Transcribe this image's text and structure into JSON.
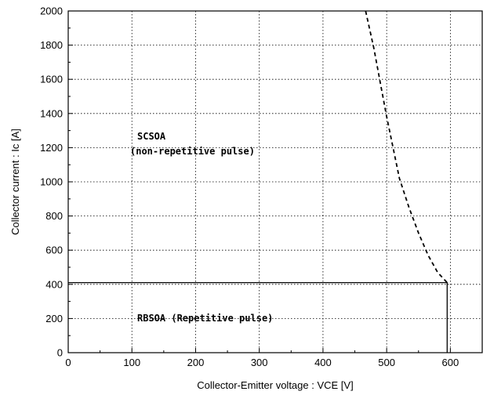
{
  "chart_data": {
    "type": "line",
    "title": "",
    "xlabel": "Collector-Emitter  voltage  :  VCE [V]",
    "ylabel": "Collector  current  :  Ic [A]",
    "xlim": [
      0,
      650
    ],
    "ylim": [
      0,
      2000
    ],
    "grid": true,
    "x_ticks": [
      0,
      100,
      200,
      300,
      400,
      500,
      600
    ],
    "y_ticks": [
      0,
      200,
      400,
      600,
      800,
      1000,
      1200,
      1400,
      1600,
      1800,
      2000
    ],
    "series": [
      {
        "style": "solid",
        "points": [
          [
            0,
            410
          ],
          [
            595,
            410
          ],
          [
            595,
            0
          ]
        ]
      },
      {
        "style": "dashed",
        "points": [
          [
            467,
            2000
          ],
          [
            480,
            1780
          ],
          [
            490,
            1580
          ],
          [
            500,
            1380
          ],
          [
            510,
            1200
          ],
          [
            520,
            1020
          ],
          [
            535,
            850
          ],
          [
            550,
            700
          ],
          [
            565,
            570
          ],
          [
            580,
            470
          ],
          [
            595,
            410
          ]
        ]
      }
    ],
    "annotations": {
      "scsoa_title": "SCSOA",
      "scsoa_sub": "(non-repetitive pulse)",
      "rbsoa": "RBSOA (Repetitive pulse)"
    }
  }
}
